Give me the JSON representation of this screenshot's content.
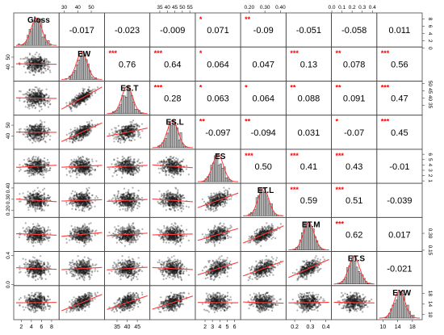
{
  "chart_data": {
    "type": "scatter-matrix",
    "variables": [
      "Gloss",
      "EW",
      "ES.T",
      "ES.L",
      "ES",
      "ET.L",
      "ET.M",
      "ET.S",
      "EYW"
    ],
    "correlations": [
      [
        null,
        -0.017,
        -0.023,
        -0.009,
        0.071,
        -0.09,
        -0.051,
        -0.058,
        0.011
      ],
      [
        -0.017,
        null,
        0.76,
        0.64,
        0.064,
        0.047,
        0.13,
        0.078,
        0.56
      ],
      [
        -0.023,
        0.76,
        null,
        0.28,
        0.063,
        0.064,
        0.088,
        0.091,
        0.47
      ],
      [
        -0.009,
        0.64,
        0.28,
        null,
        -0.097,
        -0.094,
        0.031,
        -0.07,
        0.45
      ],
      [
        0.071,
        0.064,
        0.063,
        -0.097,
        null,
        0.5,
        0.41,
        0.43,
        -0.01
      ],
      [
        -0.09,
        0.047,
        0.064,
        -0.094,
        0.5,
        null,
        0.59,
        0.51,
        -0.039
      ],
      [
        -0.051,
        0.13,
        0.088,
        0.031,
        0.41,
        0.59,
        null,
        0.62,
        0.017
      ],
      [
        -0.058,
        0.078,
        0.091,
        -0.07,
        0.43,
        0.51,
        0.62,
        null,
        -0.021
      ],
      [
        0.011,
        0.56,
        0.47,
        0.45,
        -0.01,
        -0.039,
        0.017,
        -0.021,
        null
      ]
    ],
    "correlation_labels": [
      [
        "",
        "-0.017",
        "-0.023",
        "-0.009",
        "0.071",
        "-0.09",
        "-0.051",
        "-0.058",
        "0.011"
      ],
      [
        "",
        "",
        "0.76",
        "0.64",
        "0.064",
        "0.047",
        "0.13",
        "0.078",
        "0.56"
      ],
      [
        "",
        "",
        "",
        "0.28",
        "0.063",
        "0.064",
        "0.088",
        "0.091",
        "0.47"
      ],
      [
        "",
        "",
        "",
        "",
        "-0.097",
        "-0.094",
        "0.031",
        "-0.07",
        "0.45"
      ],
      [
        "",
        "",
        "",
        "",
        "",
        "0.50",
        "0.41",
        "0.43",
        "-0.01"
      ],
      [
        "",
        "",
        "",
        "",
        "",
        "",
        "0.59",
        "0.51",
        "-0.039"
      ],
      [
        "",
        "",
        "",
        "",
        "",
        "",
        "",
        "0.62",
        "0.017"
      ],
      [
        "",
        "",
        "",
        "",
        "",
        "",
        "",
        "",
        "-0.021"
      ],
      [
        "",
        "",
        "",
        "",
        "",
        "",
        "",
        "",
        ""
      ]
    ],
    "significance": [
      [
        "",
        "",
        "",
        "",
        "*",
        "**",
        "",
        "",
        ""
      ],
      [
        "",
        "",
        "***",
        "***",
        "*",
        "",
        "***",
        "**",
        "***"
      ],
      [
        "",
        "",
        "",
        "***",
        "*",
        "*",
        "**",
        "**",
        "***"
      ],
      [
        "",
        "",
        "",
        "",
        "**",
        "**",
        "",
        "*",
        "***"
      ],
      [
        "",
        "",
        "",
        "",
        "",
        "***",
        "***",
        "***",
        ""
      ],
      [
        "",
        "",
        "",
        "",
        "",
        "",
        "***",
        "***",
        ""
      ],
      [
        "",
        "",
        "",
        "",
        "",
        "",
        "",
        "***",
        ""
      ],
      [
        "",
        "",
        "",
        "",
        "",
        "",
        "",
        "",
        ""
      ],
      [
        "",
        "",
        "",
        "",
        "",
        "",
        "",
        "",
        ""
      ]
    ],
    "ranges": [
      [
        1,
        9
      ],
      [
        28,
        58
      ],
      [
        30,
        50
      ],
      [
        30,
        57
      ],
      [
        1,
        6.5
      ],
      [
        0.16,
        0.42
      ],
      [
        0.16,
        0.42
      ],
      [
        0.02,
        0.42
      ],
      [
        9,
        20
      ]
    ],
    "axis_ticks": {
      "top": [
        {
          "var": 1,
          "values": [
            30,
            40,
            50
          ],
          "labels": [
            "30",
            "40",
            "50"
          ]
        },
        {
          "var": 3,
          "values": [
            35,
            40,
            45,
            50,
            55
          ],
          "labels": [
            "35",
            "40",
            "45",
            "50",
            "55"
          ]
        },
        {
          "var": 5,
          "values": [
            0.2,
            0.3,
            0.4
          ],
          "labels": [
            "0.20",
            "0.30",
            "0.40"
          ]
        },
        {
          "var": 7,
          "values": [
            0.0,
            0.1,
            0.2,
            0.3,
            0.4
          ],
          "labels": [
            "0.0",
            "0.1",
            "0.2",
            "0.3",
            "0.4"
          ]
        }
      ],
      "bottom": [
        {
          "var": 0,
          "values": [
            2,
            4,
            6,
            8
          ],
          "labels": [
            "2",
            "4",
            "6",
            "8"
          ]
        },
        {
          "var": 2,
          "values": [
            35,
            40,
            45
          ],
          "labels": [
            "35",
            "40",
            "45"
          ]
        },
        {
          "var": 4,
          "values": [
            2,
            3,
            4,
            5,
            6
          ],
          "labels": [
            "2",
            "3",
            "4",
            "5",
            "6"
          ]
        },
        {
          "var": 6,
          "values": [
            0.2,
            0.3,
            0.4
          ],
          "labels": [
            "0.2",
            "0.3",
            "0.4"
          ]
        },
        {
          "var": 8,
          "values": [
            10,
            14,
            18
          ],
          "labels": [
            "10",
            "14",
            "18"
          ]
        }
      ],
      "left": [
        {
          "var": 1,
          "values": [
            40,
            50
          ],
          "labels": [
            "40",
            "50"
          ]
        },
        {
          "var": 3,
          "values": [
            40,
            50
          ],
          "labels": [
            "40",
            "50"
          ]
        },
        {
          "var": 5,
          "values": [
            0.2,
            0.3,
            0.4
          ],
          "labels": [
            "0.20",
            "0.30",
            "0.40"
          ]
        },
        {
          "var": 7,
          "values": [
            0.0,
            0.4
          ],
          "labels": [
            "0.0",
            "0.4"
          ]
        }
      ],
      "right": [
        {
          "var": 0,
          "values": [
            0,
            2,
            4,
            6,
            8
          ],
          "labels": [
            "0",
            "2",
            "4",
            "6",
            "8"
          ]
        },
        {
          "var": 2,
          "values": [
            35,
            40,
            45,
            50
          ],
          "labels": [
            "35",
            "40",
            "45",
            "50"
          ]
        },
        {
          "var": 4,
          "values": [
            1,
            2,
            3,
            4,
            5,
            6
          ],
          "labels": [
            "1",
            "2",
            "3",
            "4",
            "5",
            "6"
          ]
        },
        {
          "var": 6,
          "values": [
            0.15,
            0.3
          ],
          "labels": [
            "0.15",
            "0.30"
          ]
        },
        {
          "var": 8,
          "values": [
            10,
            14,
            18
          ],
          "labels": [
            "10",
            "14",
            "18"
          ]
        }
      ]
    },
    "grid": false,
    "legend": "none"
  },
  "colors": {
    "points": "#1a1a1a",
    "smooth": "#ff3b3b",
    "stars": "#ff0000",
    "bars": "#bfbfbf",
    "text": "#000000"
  }
}
